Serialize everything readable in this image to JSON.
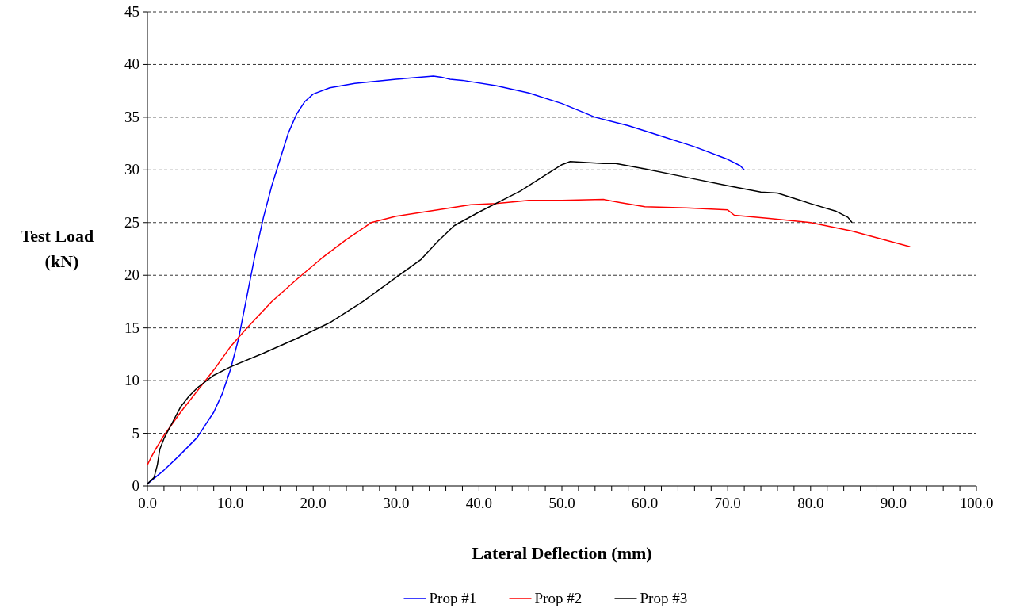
{
  "chart_data": {
    "type": "line",
    "xlabel": "Lateral Deflection (mm)",
    "ylabel": "Test Load (kN)",
    "xlim": [
      0,
      100
    ],
    "xticks": [
      {
        "value": 0,
        "label": "0.0"
      },
      {
        "value": 2,
        "label": null
      },
      {
        "value": 4,
        "label": null
      },
      {
        "value": 6,
        "label": null
      },
      {
        "value": 8,
        "label": null
      },
      {
        "value": 10,
        "label": "10.0"
      },
      {
        "value": 12,
        "label": null
      },
      {
        "value": 14,
        "label": null
      },
      {
        "value": 16,
        "label": null
      },
      {
        "value": 18,
        "label": null
      },
      {
        "value": 20,
        "label": "20.0"
      },
      {
        "value": 22,
        "label": null
      },
      {
        "value": 24,
        "label": null
      },
      {
        "value": 26,
        "label": null
      },
      {
        "value": 28,
        "label": null
      },
      {
        "value": 30,
        "label": "30.0"
      },
      {
        "value": 32,
        "label": null
      },
      {
        "value": 34,
        "label": null
      },
      {
        "value": 36,
        "label": null
      },
      {
        "value": 38,
        "label": null
      },
      {
        "value": 40,
        "label": "40.0"
      },
      {
        "value": 42,
        "label": null
      },
      {
        "value": 44,
        "label": null
      },
      {
        "value": 46,
        "label": null
      },
      {
        "value": 48,
        "label": null
      },
      {
        "value": 50,
        "label": "50.0"
      },
      {
        "value": 52,
        "label": null
      },
      {
        "value": 54,
        "label": null
      },
      {
        "value": 56,
        "label": null
      },
      {
        "value": 58,
        "label": null
      },
      {
        "value": 60,
        "label": "60.0"
      },
      {
        "value": 62,
        "label": null
      },
      {
        "value": 64,
        "label": null
      },
      {
        "value": 66,
        "label": null
      },
      {
        "value": 68,
        "label": null
      },
      {
        "value": 70,
        "label": "70.0"
      },
      {
        "value": 72,
        "label": null
      },
      {
        "value": 74,
        "label": null
      },
      {
        "value": 76,
        "label": null
      },
      {
        "value": 78,
        "label": null
      },
      {
        "value": 80,
        "label": "80.0"
      },
      {
        "value": 82,
        "label": null
      },
      {
        "value": 84,
        "label": null
      },
      {
        "value": 86,
        "label": null
      },
      {
        "value": 88,
        "label": null
      },
      {
        "value": 90,
        "label": "90.0"
      },
      {
        "value": 92,
        "label": null
      },
      {
        "value": 94,
        "label": null
      },
      {
        "value": 96,
        "label": null
      },
      {
        "value": 98,
        "label": null
      },
      {
        "value": 100,
        "label": "100.0"
      }
    ],
    "ylim": [
      0,
      45
    ],
    "yticks": [
      0,
      5,
      10,
      15,
      20,
      25,
      30,
      35,
      40,
      45
    ],
    "grid": "y",
    "legend": "bottom",
    "marker": "none",
    "line_style": "solid",
    "series": [
      {
        "name": "Prop #1",
        "color": "#0000ff",
        "x": [
          0,
          2,
          4,
          6,
          7,
          8,
          9,
          10,
          11,
          12,
          13,
          14,
          15,
          16,
          17,
          18,
          19,
          20,
          22,
          25,
          30,
          34.5,
          35.5,
          36.5,
          38,
          42,
          46,
          50,
          54,
          58,
          62,
          66,
          70,
          71.5,
          72
        ],
        "values": [
          0.2,
          1.5,
          3,
          4.6,
          5.8,
          7,
          8.7,
          11,
          14,
          18,
          22,
          25.5,
          28.5,
          31,
          33.5,
          35.3,
          36.5,
          37.2,
          37.8,
          38.2,
          38.6,
          38.9,
          38.8,
          38.6,
          38.5,
          38,
          37.3,
          36.3,
          35,
          34.2,
          33.2,
          32.2,
          31,
          30.4,
          30
        ]
      },
      {
        "name": "Prop #2",
        "color": "#ff0000",
        "x": [
          0,
          0.5,
          1,
          2,
          4,
          6,
          8,
          10,
          12,
          15,
          18,
          21,
          24,
          27,
          30,
          35,
          39,
          42,
          46,
          50,
          55,
          57,
          60,
          65,
          70,
          70.8,
          75,
          80,
          85,
          92
        ],
        "values": [
          2,
          2.8,
          3.5,
          4.8,
          7,
          9,
          11,
          13.2,
          15,
          17.5,
          19.6,
          21.6,
          23.4,
          25,
          25.6,
          26.2,
          26.7,
          26.8,
          27.1,
          27.1,
          27.2,
          26.9,
          26.5,
          26.4,
          26.2,
          25.7,
          25.4,
          25,
          24.2,
          22.7
        ]
      },
      {
        "name": "Prop #3",
        "color": "#000000",
        "x": [
          0,
          0.8,
          1.2,
          1.5,
          2,
          3,
          4,
          5,
          6,
          8,
          10,
          14,
          18,
          22,
          26,
          30,
          33,
          35,
          37,
          40,
          45,
          48,
          50,
          51,
          53,
          55,
          56.5,
          60,
          65,
          70,
          74,
          76,
          80,
          83,
          84.5,
          85
        ],
        "values": [
          0.2,
          0.8,
          2,
          3.5,
          4.5,
          6,
          7.5,
          8.5,
          9.3,
          10.5,
          11.3,
          12.6,
          14,
          15.5,
          17.5,
          19.8,
          21.5,
          23.2,
          24.7,
          26,
          28,
          29.5,
          30.5,
          30.8,
          30.7,
          30.6,
          30.6,
          30.1,
          29.3,
          28.5,
          27.9,
          27.8,
          26.8,
          26.1,
          25.5,
          25
        ]
      }
    ]
  }
}
